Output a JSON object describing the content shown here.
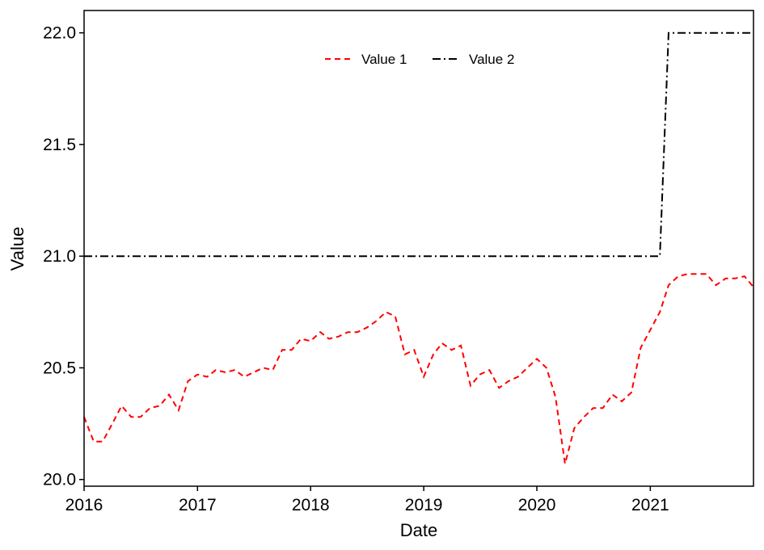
{
  "chart_data": {
    "type": "line",
    "title": "",
    "xlabel": "Date",
    "ylabel": "Value",
    "x_axis": {
      "type": "date",
      "range": [
        "2016-01-01",
        "2021-11-30"
      ],
      "ticks": [
        "2016-01-01",
        "2017-01-01",
        "2018-01-01",
        "2019-01-01",
        "2020-01-01",
        "2021-01-01"
      ],
      "tick_labels": [
        "2016",
        "2017",
        "2018",
        "2019",
        "2020",
        "2021"
      ]
    },
    "y_axis": {
      "range": [
        19.97,
        22.1
      ],
      "ticks": [
        20.0,
        20.5,
        21.0,
        21.5,
        22.0
      ],
      "tick_labels": [
        "20.0",
        "20.5",
        "21.0",
        "21.5",
        "22.0"
      ]
    },
    "grid": false,
    "legend": {
      "position": "top-center",
      "orientation": "horizontal"
    },
    "series": [
      {
        "name": "Value 1",
        "color": "#ff0000",
        "line_style": "dashed",
        "x": [
          "2016-01-01",
          "2016-02-01",
          "2016-03-01",
          "2016-04-01",
          "2016-05-01",
          "2016-06-01",
          "2016-07-01",
          "2016-08-01",
          "2016-09-01",
          "2016-10-01",
          "2016-11-01",
          "2016-12-01",
          "2017-01-01",
          "2017-02-01",
          "2017-03-01",
          "2017-04-01",
          "2017-05-01",
          "2017-06-01",
          "2017-07-01",
          "2017-08-01",
          "2017-09-01",
          "2017-10-01",
          "2017-11-01",
          "2017-12-01",
          "2018-01-01",
          "2018-02-01",
          "2018-03-01",
          "2018-04-01",
          "2018-05-01",
          "2018-06-01",
          "2018-07-01",
          "2018-08-01",
          "2018-09-01",
          "2018-10-01",
          "2018-11-01",
          "2018-12-01",
          "2019-01-01",
          "2019-02-01",
          "2019-03-01",
          "2019-04-01",
          "2019-05-01",
          "2019-06-01",
          "2019-07-01",
          "2019-08-01",
          "2019-09-01",
          "2019-10-01",
          "2019-11-01",
          "2019-12-01",
          "2020-01-01",
          "2020-02-01",
          "2020-03-01",
          "2020-04-01",
          "2020-05-01",
          "2020-06-01",
          "2020-07-01",
          "2020-08-01",
          "2020-09-01",
          "2020-10-01",
          "2020-11-01",
          "2020-12-01",
          "2021-01-01",
          "2021-02-01",
          "2021-03-01",
          "2021-04-01",
          "2021-05-01",
          "2021-06-01",
          "2021-07-01",
          "2021-08-01",
          "2021-09-01",
          "2021-10-01",
          "2021-11-01",
          "2021-12-01"
        ],
        "y": [
          20.28,
          20.17,
          20.17,
          20.25,
          20.33,
          20.28,
          20.28,
          20.32,
          20.33,
          20.38,
          20.31,
          20.44,
          20.47,
          20.46,
          20.49,
          20.48,
          20.49,
          20.46,
          20.48,
          20.5,
          20.49,
          20.58,
          20.58,
          20.63,
          20.62,
          20.66,
          20.63,
          20.64,
          20.66,
          20.66,
          20.68,
          20.71,
          20.75,
          20.73,
          20.56,
          20.58,
          20.46,
          20.56,
          20.61,
          20.58,
          20.6,
          20.42,
          20.47,
          20.49,
          20.41,
          20.44,
          20.46,
          20.5,
          20.54,
          20.5,
          20.37,
          20.07,
          20.23,
          20.28,
          20.32,
          20.32,
          20.38,
          20.35,
          20.39,
          20.59,
          20.67,
          20.75,
          20.87,
          20.91,
          20.92,
          20.92,
          20.92,
          20.87,
          20.9,
          20.9,
          20.91,
          20.86
        ]
      },
      {
        "name": "Value 2",
        "color": "#000000",
        "line_style": "dashdot",
        "x": [
          "2016-01-01",
          "2021-02-01",
          "2021-03-01",
          "2021-12-01"
        ],
        "y": [
          21.0,
          21.0,
          22.0,
          22.0
        ]
      }
    ]
  }
}
